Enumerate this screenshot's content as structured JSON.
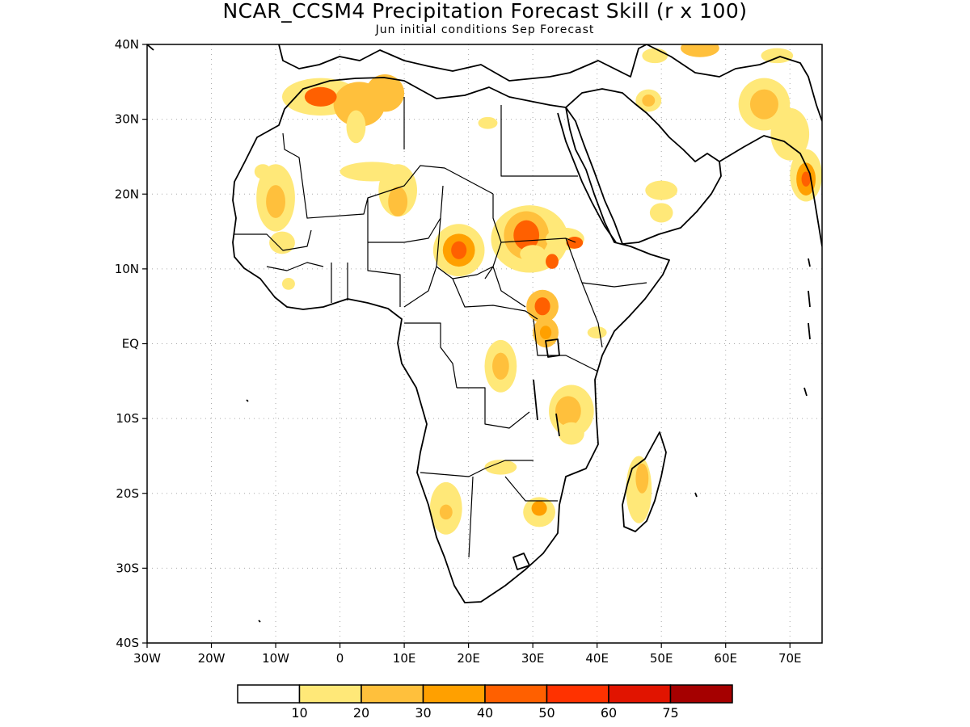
{
  "header": {
    "title": "NCAR_CCSM4 Precipitation Forecast Skill (r x 100)",
    "subtitle": "Jun initial conditions  Sep Forecast"
  },
  "map": {
    "lon_range": [
      -30,
      75
    ],
    "lat_range": [
      -40,
      40
    ],
    "lon_ticks": [
      {
        "value": -30,
        "label": "30W"
      },
      {
        "value": -20,
        "label": "20W"
      },
      {
        "value": -10,
        "label": "10W"
      },
      {
        "value": 0,
        "label": "0"
      },
      {
        "value": 10,
        "label": "10E"
      },
      {
        "value": 20,
        "label": "20E"
      },
      {
        "value": 30,
        "label": "30E"
      },
      {
        "value": 40,
        "label": "40E"
      },
      {
        "value": 50,
        "label": "50E"
      },
      {
        "value": 60,
        "label": "60E"
      },
      {
        "value": 70,
        "label": "70E"
      }
    ],
    "lat_ticks": [
      {
        "value": 40,
        "label": "40N"
      },
      {
        "value": 30,
        "label": "30N"
      },
      {
        "value": 20,
        "label": "20N"
      },
      {
        "value": 10,
        "label": "10N"
      },
      {
        "value": 0,
        "label": "EQ"
      },
      {
        "value": -10,
        "label": "10S"
      },
      {
        "value": -20,
        "label": "20S"
      },
      {
        "value": -30,
        "label": "30S"
      },
      {
        "value": -40,
        "label": "40S"
      }
    ],
    "grid": true,
    "skill_regions": [
      {
        "lon": -3,
        "lat": 33,
        "rx": 6,
        "ry": 2.5,
        "level": 1
      },
      {
        "lon": 3,
        "lat": 32,
        "rx": 4,
        "ry": 3,
        "level": 2
      },
      {
        "lon": -3,
        "lat": 33,
        "rx": 2.5,
        "ry": 1.3,
        "level": 4
      },
      {
        "lon": 7,
        "lat": 33.5,
        "rx": 3,
        "ry": 2.5,
        "level": 2
      },
      {
        "lon": 2.5,
        "lat": 29,
        "rx": 1.5,
        "ry": 2.2,
        "level": 1
      },
      {
        "lon": -10,
        "lat": 19.5,
        "rx": 3,
        "ry": 4.5,
        "level": 1
      },
      {
        "lon": -10,
        "lat": 19,
        "rx": 1.5,
        "ry": 2.2,
        "level": 2
      },
      {
        "lon": -9,
        "lat": 13.5,
        "rx": 2,
        "ry": 1.5,
        "level": 1
      },
      {
        "lon": 5,
        "lat": 23,
        "rx": 5,
        "ry": 1.3,
        "level": 1
      },
      {
        "lon": 9,
        "lat": 20.5,
        "rx": 3,
        "ry": 3.5,
        "level": 1
      },
      {
        "lon": 9,
        "lat": 19,
        "rx": 1.5,
        "ry": 2,
        "level": 2
      },
      {
        "lon": 18.5,
        "lat": 12.5,
        "rx": 4,
        "ry": 3.5,
        "level": 1
      },
      {
        "lon": 18.5,
        "lat": 12.5,
        "rx": 2.5,
        "ry": 2.2,
        "level": 3
      },
      {
        "lon": 18.5,
        "lat": 12.5,
        "rx": 1.2,
        "ry": 1.2,
        "level": 4
      },
      {
        "lon": 29.5,
        "lat": 14,
        "rx": 6,
        "ry": 4.5,
        "level": 1
      },
      {
        "lon": 29,
        "lat": 14.5,
        "rx": 3.5,
        "ry": 3.2,
        "level": 2
      },
      {
        "lon": 29,
        "lat": 14.5,
        "rx": 2,
        "ry": 2,
        "level": 4
      },
      {
        "lon": 35,
        "lat": 14,
        "rx": 3,
        "ry": 1.5,
        "level": 1
      },
      {
        "lon": 36.5,
        "lat": 13.5,
        "rx": 1.3,
        "ry": 0.8,
        "level": 4
      },
      {
        "lon": 33,
        "lat": 11,
        "rx": 1,
        "ry": 1,
        "level": 4
      },
      {
        "lon": 31.5,
        "lat": 5,
        "rx": 2.5,
        "ry": 2.2,
        "level": 2
      },
      {
        "lon": 31.5,
        "lat": 5,
        "rx": 1.2,
        "ry": 1.2,
        "level": 4
      },
      {
        "lon": 32,
        "lat": 1.5,
        "rx": 2,
        "ry": 2,
        "level": 2
      },
      {
        "lon": 32,
        "lat": 1.5,
        "rx": 0.9,
        "ry": 0.9,
        "level": 3
      },
      {
        "lon": 25,
        "lat": -3,
        "rx": 2.5,
        "ry": 3.5,
        "level": 1
      },
      {
        "lon": 25,
        "lat": -3,
        "rx": 1.3,
        "ry": 1.8,
        "level": 2
      },
      {
        "lon": 36,
        "lat": -9,
        "rx": 3.5,
        "ry": 3.5,
        "level": 1
      },
      {
        "lon": 35.5,
        "lat": -9,
        "rx": 2,
        "ry": 2,
        "level": 2
      },
      {
        "lon": 36,
        "lat": -12,
        "rx": 2,
        "ry": 1.5,
        "level": 1
      },
      {
        "lon": 46.5,
        "lat": -19.5,
        "rx": 2,
        "ry": 4.5,
        "level": 1
      },
      {
        "lon": 47,
        "lat": -18,
        "rx": 1,
        "ry": 2,
        "level": 2
      },
      {
        "lon": 25,
        "lat": -16.5,
        "rx": 2.5,
        "ry": 1,
        "level": 1
      },
      {
        "lon": 16.5,
        "lat": -22,
        "rx": 2.5,
        "ry": 3.5,
        "level": 1
      },
      {
        "lon": 16.5,
        "lat": -22.5,
        "rx": 1,
        "ry": 1,
        "level": 2
      },
      {
        "lon": 31,
        "lat": -22.5,
        "rx": 2.5,
        "ry": 2,
        "level": 1
      },
      {
        "lon": 31,
        "lat": -22,
        "rx": 1.2,
        "ry": 1,
        "level": 3
      },
      {
        "lon": 50,
        "lat": 20.5,
        "rx": 2.5,
        "ry": 1.3,
        "level": 1
      },
      {
        "lon": 50,
        "lat": 17.5,
        "rx": 1.8,
        "ry": 1.3,
        "level": 1
      },
      {
        "lon": 48,
        "lat": 32.5,
        "rx": 2,
        "ry": 1.5,
        "level": 1
      },
      {
        "lon": 48,
        "lat": 32.5,
        "rx": 1,
        "ry": 0.8,
        "level": 2
      },
      {
        "lon": 66,
        "lat": 32,
        "rx": 4,
        "ry": 3.5,
        "level": 1
      },
      {
        "lon": 66,
        "lat": 32,
        "rx": 2.2,
        "ry": 2,
        "level": 2
      },
      {
        "lon": 70,
        "lat": 28,
        "rx": 3,
        "ry": 3.5,
        "level": 1
      },
      {
        "lon": 72.5,
        "lat": 22.5,
        "rx": 2.5,
        "ry": 3.5,
        "level": 1
      },
      {
        "lon": 72.5,
        "lat": 22,
        "rx": 1.5,
        "ry": 2.2,
        "level": 3
      },
      {
        "lon": 72.5,
        "lat": 22,
        "rx": 0.7,
        "ry": 1,
        "level": 4
      },
      {
        "lon": 56,
        "lat": 39.5,
        "rx": 3,
        "ry": 1.2,
        "level": 2
      },
      {
        "lon": 49,
        "lat": 38.5,
        "rx": 2,
        "ry": 1,
        "level": 1
      },
      {
        "lon": 68,
        "lat": 38.5,
        "rx": 2.5,
        "ry": 1,
        "level": 1
      },
      {
        "lon": 30,
        "lat": 12,
        "rx": 2,
        "ry": 1.2,
        "level": 1
      },
      {
        "lon": 23,
        "lat": 29.5,
        "rx": 1.5,
        "ry": 0.8,
        "level": 1
      },
      {
        "lon": 40,
        "lat": 1.5,
        "rx": 1.5,
        "ry": 0.8,
        "level": 1
      },
      {
        "lon": -12,
        "lat": 23,
        "rx": 1.3,
        "ry": 1,
        "level": 1
      },
      {
        "lon": -8,
        "lat": 8,
        "rx": 1,
        "ry": 0.8,
        "level": 1
      }
    ]
  },
  "colorbar": {
    "colors": [
      "#ffffff",
      "#ffe878",
      "#ffc03c",
      "#ffa000",
      "#ff6000",
      "#ff3200",
      "#e11400",
      "#a50000"
    ],
    "labels": [
      "10",
      "20",
      "30",
      "40",
      "50",
      "60",
      "75"
    ]
  }
}
